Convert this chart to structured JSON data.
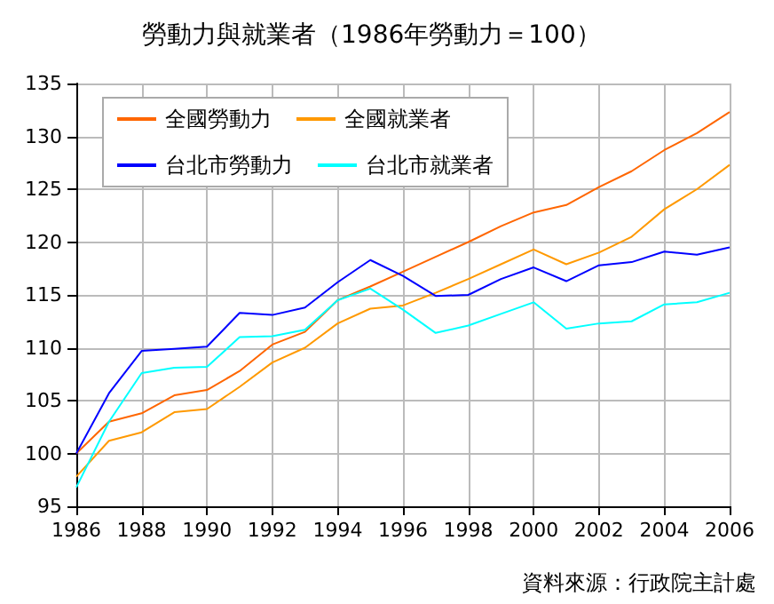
{
  "chart_data": {
    "type": "line",
    "title": "勞動力與就業者（1986年勞動力＝100）",
    "annotations": [
      "資料來源：行政院主計處"
    ],
    "x": [
      1986,
      1987,
      1988,
      1989,
      1990,
      1991,
      1992,
      1993,
      1994,
      1995,
      1996,
      1997,
      1998,
      1999,
      2000,
      2001,
      2002,
      2003,
      2004,
      2005,
      2006
    ],
    "series": [
      {
        "name": "全國勞動力",
        "color": "#ff6600",
        "values": [
          100,
          103,
          103.8,
          105.5,
          106,
          107.8,
          110.3,
          111.5,
          114.5,
          115.8,
          117.2,
          118.6,
          120,
          121.5,
          122.8,
          123.5,
          125.2,
          126.7,
          128.7,
          130.3,
          132.3
        ]
      },
      {
        "name": "全國就業者",
        "color": "#ff9900",
        "values": [
          97.8,
          101.2,
          102,
          103.9,
          104.2,
          106.3,
          108.6,
          110,
          112.3,
          113.7,
          114,
          115.2,
          116.5,
          117.9,
          119.3,
          117.9,
          119,
          120.5,
          123.1,
          125,
          127.3
        ]
      },
      {
        "name": "台北市勞動力",
        "color": "#0000ff",
        "values": [
          100,
          105.7,
          109.7,
          109.9,
          110.1,
          113.3,
          113.1,
          113.8,
          116.2,
          118.3,
          116.8,
          114.9,
          115,
          116.5,
          117.6,
          116.3,
          117.8,
          118.1,
          119.1,
          118.8,
          119.5
        ]
      },
      {
        "name": "台北市就業者",
        "color": "#00ffff",
        "values": [
          96.8,
          103,
          107.6,
          108.1,
          108.2,
          111,
          111.1,
          111.7,
          114.5,
          115.6,
          113.6,
          111.4,
          112.1,
          113.2,
          114.3,
          111.8,
          112.3,
          112.5,
          114.1,
          114.3,
          115.2
        ]
      }
    ],
    "xlim": [
      1986,
      2006
    ],
    "xticks": [
      1986,
      1988,
      1990,
      1992,
      1994,
      1996,
      1998,
      2000,
      2002,
      2004,
      2006
    ],
    "ylim": [
      95,
      135
    ],
    "yticks": [
      95,
      100,
      105,
      110,
      115,
      120,
      125,
      130,
      135
    ],
    "grid": true,
    "legend": "top left",
    "marker": "none"
  }
}
